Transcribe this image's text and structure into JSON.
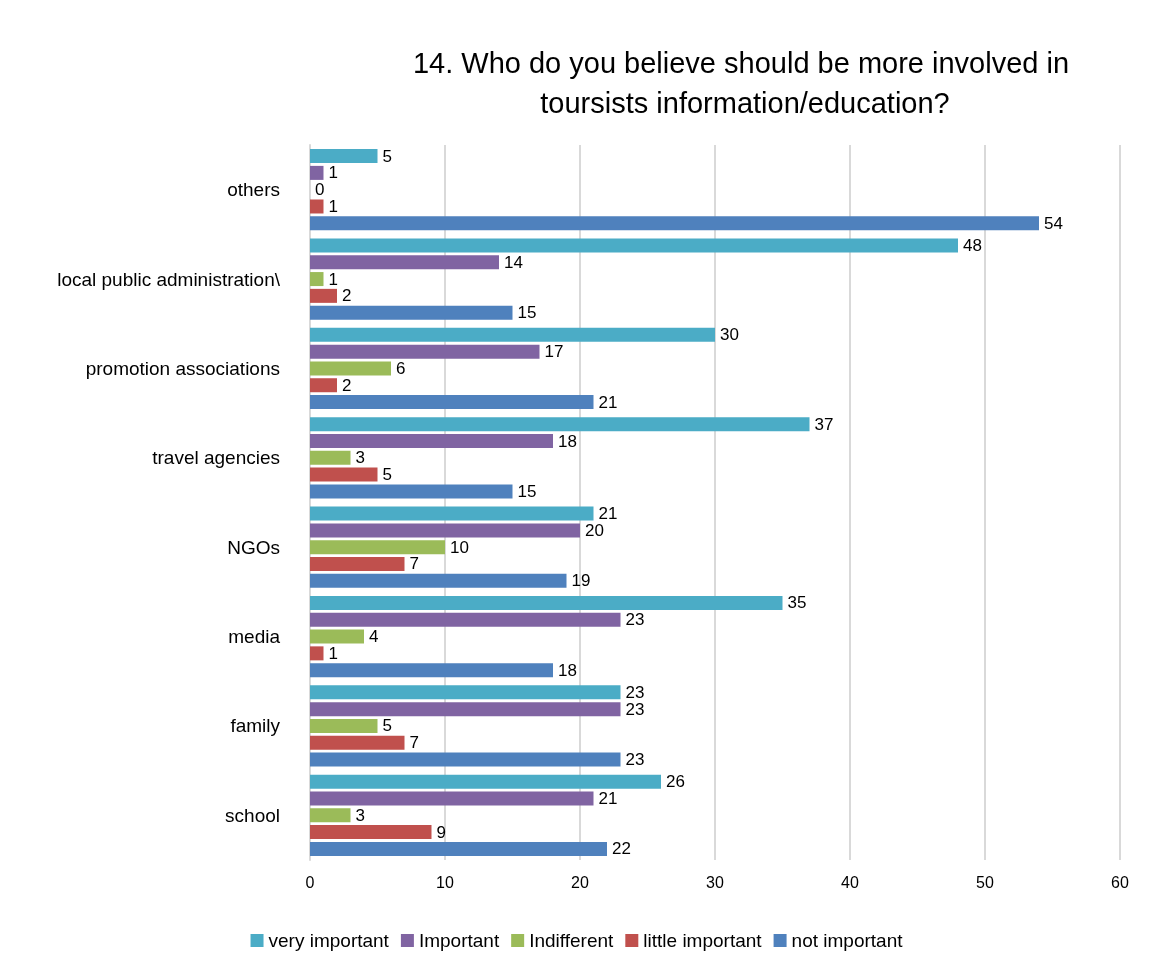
{
  "chart_data": {
    "type": "bar",
    "orientation": "horizontal",
    "title": "14. Who do you believe should be more involved in toursists information/education?",
    "categories": [
      "others",
      "local public administration\\",
      "promotion associations",
      "travel agencies",
      "NGOs",
      "media",
      "family",
      "school"
    ],
    "series": [
      {
        "name": "very important",
        "color": "#4bacc6",
        "values": [
          5,
          48,
          30,
          37,
          21,
          35,
          23,
          26
        ]
      },
      {
        "name": "Important",
        "color": "#8064a2",
        "values": [
          1,
          14,
          17,
          18,
          20,
          23,
          23,
          21
        ]
      },
      {
        "name": "Indifferent",
        "color": "#9bbb59",
        "values": [
          0,
          1,
          6,
          3,
          10,
          4,
          5,
          3
        ]
      },
      {
        "name": "little important",
        "color": "#c0504d",
        "values": [
          1,
          2,
          2,
          5,
          7,
          1,
          7,
          9
        ]
      },
      {
        "name": "not important",
        "color": "#4f81bd",
        "values": [
          54,
          15,
          21,
          15,
          19,
          18,
          23,
          22
        ]
      }
    ],
    "xlim": [
      0,
      60
    ],
    "xticks": [
      0,
      10,
      20,
      30,
      40,
      50,
      60
    ],
    "grid": "x",
    "legend": "bottom",
    "data_labels": true
  }
}
